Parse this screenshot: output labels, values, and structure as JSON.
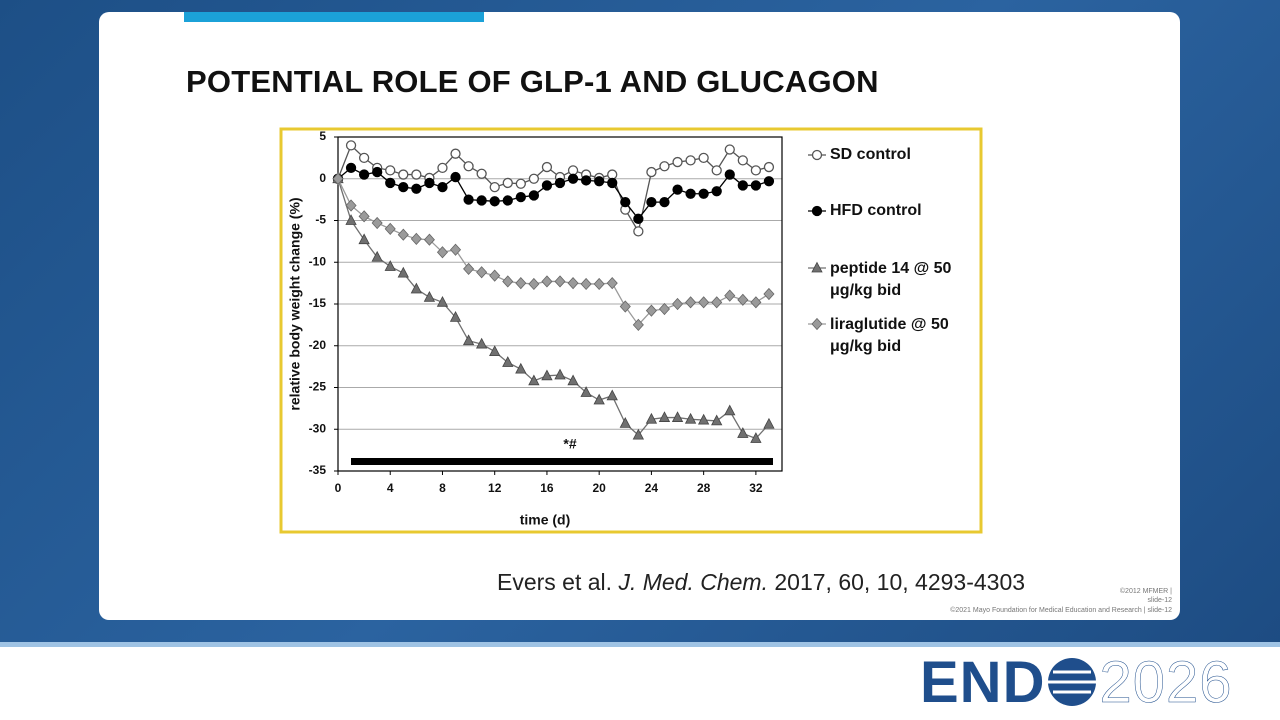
{
  "slide": {
    "title": "POTENTIAL ROLE OF GLP-1 AND GLUCAGON",
    "citation": {
      "authors": "Evers et al.",
      "journal": "J. Med. Chem.",
      "details": "2017, 60, 10, 4293-4303"
    },
    "footer_small": "©2012 MFMER | slide-12",
    "footer": "©2021 Mayo Foundation for Medical Education and Research | slide-12",
    "logo": {
      "left": "END",
      "right": "2026"
    }
  },
  "chart_data": {
    "type": "line",
    "xlabel": "time (d)",
    "ylabel": "relative body weight change (%)",
    "annotation": "*#",
    "x": [
      0,
      1,
      2,
      3,
      4,
      5,
      6,
      7,
      8,
      9,
      10,
      11,
      12,
      13,
      14,
      15,
      16,
      17,
      18,
      19,
      20,
      21,
      22,
      23,
      24,
      25,
      26,
      27,
      28,
      29,
      30,
      31,
      32,
      33
    ],
    "xlim": [
      0,
      34
    ],
    "xticks": [
      0,
      4,
      8,
      12,
      16,
      20,
      24,
      28,
      32
    ],
    "ylim": [
      -35,
      5
    ],
    "yticks": [
      -35,
      -30,
      -25,
      -20,
      -15,
      -10,
      -5,
      0,
      5
    ],
    "grid": true,
    "series": [
      {
        "name": "SD control",
        "color": "#555555",
        "marker": "circle-open",
        "values": [
          0,
          4,
          2.5,
          1.3,
          1,
          0.5,
          0.5,
          0.1,
          1.3,
          3,
          1.5,
          0.6,
          -1,
          -0.5,
          -0.6,
          0,
          1.4,
          0.2,
          1,
          0.5,
          0.1,
          0.5,
          -3.7,
          -6.3,
          0.8,
          1.5,
          2,
          2.2,
          2.5,
          1,
          3.5,
          2.2,
          1,
          1.4
        ]
      },
      {
        "name": "HFD control",
        "color": "#000000",
        "marker": "circle",
        "values": [
          0,
          1.3,
          0.5,
          0.8,
          -0.5,
          -1,
          -1.2,
          -0.5,
          -1,
          0.2,
          -2.5,
          -2.6,
          -2.7,
          -2.6,
          -2.2,
          -2,
          -0.8,
          -0.5,
          0,
          -0.2,
          -0.3,
          -0.5,
          -2.8,
          -4.8,
          -2.8,
          -2.8,
          -1.3,
          -1.8,
          -1.8,
          -1.5,
          0.5,
          -0.8,
          -0.8,
          -0.3
        ]
      },
      {
        "name": "peptide 14 @ 50 μg/kg bid",
        "color": "#707070",
        "marker": "triangle",
        "values": [
          0,
          -5,
          -7.3,
          -9.4,
          -10.5,
          -11.3,
          -13.2,
          -14.2,
          -14.8,
          -16.6,
          -19.4,
          -19.8,
          -20.7,
          -22,
          -22.8,
          -24.2,
          -23.6,
          -23.5,
          -24.2,
          -25.6,
          -26.5,
          -26,
          -29.3,
          -30.7,
          -28.8,
          -28.6,
          -28.6,
          -28.8,
          -28.9,
          -29,
          -27.8,
          -30.5,
          -31.1,
          -29.4
        ]
      },
      {
        "name": "liraglutide @ 50 μg/kg bid",
        "color": "#9a9a9a",
        "marker": "diamond",
        "values": [
          0,
          -3.2,
          -4.5,
          -5.3,
          -6,
          -6.7,
          -7.2,
          -7.3,
          -8.8,
          -8.5,
          -10.8,
          -11.2,
          -11.6,
          -12.3,
          -12.5,
          -12.6,
          -12.3,
          -12.3,
          -12.5,
          -12.6,
          -12.6,
          -12.5,
          -15.3,
          -17.5,
          -15.8,
          -15.6,
          -15,
          -14.8,
          -14.8,
          -14.8,
          -14,
          -14.5,
          -14.8,
          -13.8
        ]
      }
    ]
  }
}
